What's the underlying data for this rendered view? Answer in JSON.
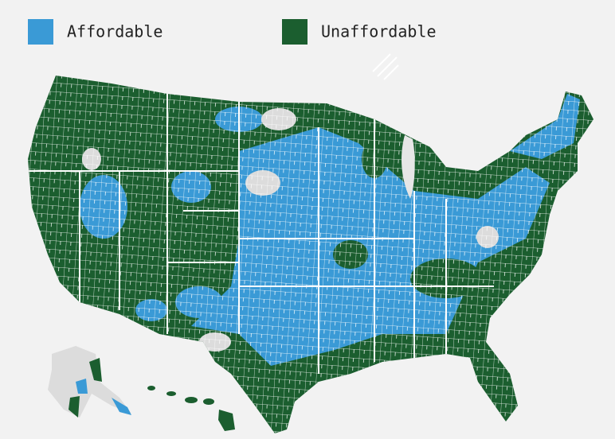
{
  "legend": {
    "items": [
      {
        "label": "Affordable",
        "color": "#3a9ad6"
      },
      {
        "label": "Unaffordable",
        "color": "#1b5e2f"
      }
    ]
  }
}
